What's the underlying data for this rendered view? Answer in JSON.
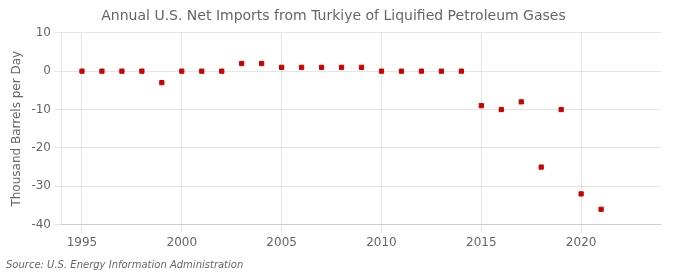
{
  "chart_data": {
    "type": "scatter",
    "title": "Annual U.S. Net Imports from Turkiye of Liquified Petroleum Gases",
    "ylabel": "Thousand Barrels per Day",
    "source": "Source: U.S. Energy Information Administration",
    "x": [
      1995,
      1996,
      1997,
      1998,
      1999,
      2000,
      2001,
      2002,
      2003,
      2004,
      2005,
      2006,
      2007,
      2008,
      2009,
      2010,
      2011,
      2012,
      2013,
      2014,
      2015,
      2016,
      2017,
      2018,
      2019,
      2020,
      2021
    ],
    "values": [
      0,
      0,
      0,
      0,
      -3,
      0,
      0,
      0,
      2,
      2,
      1,
      1,
      1,
      1,
      1,
      0,
      0,
      0,
      0,
      0,
      -9,
      -10,
      -8,
      -25,
      -10,
      -32,
      -36
    ],
    "color": "#cc0000",
    "marker": "square",
    "xlim": [
      1994,
      2024
    ],
    "ylim": [
      -40,
      10
    ],
    "xticks": [
      1995,
      2000,
      2005,
      2010,
      2015,
      2020
    ],
    "yticks": [
      -40,
      -30,
      -20,
      -10,
      0,
      10
    ],
    "grid": true
  }
}
